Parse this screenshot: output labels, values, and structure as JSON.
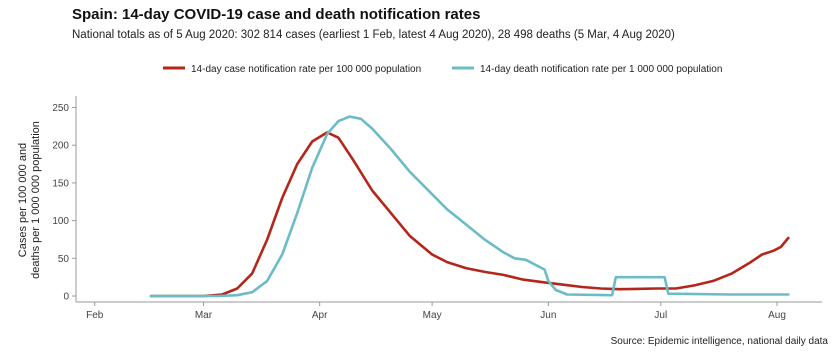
{
  "title": "Spain: 14-day COVID-19 case and death notification rates",
  "subtitle": "National totals as of 5 Aug 2020: 302 814 cases (earliest 1 Feb, latest 4 Aug 2020), 28 498 deaths (5 Mar, 4 Aug 2020)",
  "source": "Source: Epidemic intelligence, national daily data",
  "colors": {
    "cases": "#b5261a",
    "deaths": "#6cbcc8"
  },
  "chart_data": {
    "type": "line",
    "title": "Spain: 14-day COVID-19 case and death notification rates",
    "ylabel_line1": "Cases per 100 000 and",
    "ylabel_line2": "deaths per 1 000 000 population",
    "ylim": [
      0,
      260
    ],
    "yticks": [
      0,
      50,
      100,
      150,
      200,
      250
    ],
    "xlim": [
      "2020-01-27",
      "2020-08-13"
    ],
    "xticks": [
      {
        "label": "Feb",
        "date": "2020-02-01"
      },
      {
        "label": "Mar",
        "date": "2020-03-01"
      },
      {
        "label": "Apr",
        "date": "2020-04-01"
      },
      {
        "label": "May",
        "date": "2020-05-01"
      },
      {
        "label": "Jun",
        "date": "2020-06-01"
      },
      {
        "label": "Jul",
        "date": "2020-07-01"
      },
      {
        "label": "Aug",
        "date": "2020-08-01"
      }
    ],
    "legend_position": "top",
    "grid": false,
    "series": [
      {
        "name": "14-day case notification rate per 100 000 population",
        "color": "#b5261a",
        "points": [
          [
            "2020-02-16",
            0
          ],
          [
            "2020-03-01",
            0
          ],
          [
            "2020-03-06",
            2
          ],
          [
            "2020-03-10",
            10
          ],
          [
            "2020-03-14",
            30
          ],
          [
            "2020-03-18",
            75
          ],
          [
            "2020-03-22",
            130
          ],
          [
            "2020-03-26",
            175
          ],
          [
            "2020-03-30",
            205
          ],
          [
            "2020-04-03",
            217
          ],
          [
            "2020-04-06",
            210
          ],
          [
            "2020-04-10",
            180
          ],
          [
            "2020-04-15",
            140
          ],
          [
            "2020-04-20",
            110
          ],
          [
            "2020-04-25",
            80
          ],
          [
            "2020-05-01",
            55
          ],
          [
            "2020-05-05",
            45
          ],
          [
            "2020-05-10",
            37
          ],
          [
            "2020-05-15",
            32
          ],
          [
            "2020-05-20",
            28
          ],
          [
            "2020-05-25",
            22
          ],
          [
            "2020-05-31",
            18
          ],
          [
            "2020-06-05",
            15
          ],
          [
            "2020-06-10",
            12
          ],
          [
            "2020-06-15",
            10
          ],
          [
            "2020-06-20",
            9
          ],
          [
            "2020-06-30",
            10
          ],
          [
            "2020-07-05",
            10
          ],
          [
            "2020-07-10",
            14
          ],
          [
            "2020-07-15",
            20
          ],
          [
            "2020-07-20",
            30
          ],
          [
            "2020-07-25",
            45
          ],
          [
            "2020-07-28",
            55
          ],
          [
            "2020-07-31",
            60
          ],
          [
            "2020-08-02",
            65
          ],
          [
            "2020-08-04",
            77
          ]
        ]
      },
      {
        "name": "14-day death notification rate per 1 000 000 population",
        "color": "#6cbcc8",
        "points": [
          [
            "2020-02-16",
            0
          ],
          [
            "2020-03-05",
            0
          ],
          [
            "2020-03-10",
            1
          ],
          [
            "2020-03-14",
            5
          ],
          [
            "2020-03-18",
            20
          ],
          [
            "2020-03-22",
            55
          ],
          [
            "2020-03-26",
            110
          ],
          [
            "2020-03-30",
            170
          ],
          [
            "2020-04-03",
            215
          ],
          [
            "2020-04-06",
            232
          ],
          [
            "2020-04-09",
            238
          ],
          [
            "2020-04-12",
            235
          ],
          [
            "2020-04-15",
            222
          ],
          [
            "2020-04-20",
            195
          ],
          [
            "2020-04-25",
            165
          ],
          [
            "2020-05-01",
            135
          ],
          [
            "2020-05-05",
            115
          ],
          [
            "2020-05-10",
            95
          ],
          [
            "2020-05-15",
            75
          ],
          [
            "2020-05-20",
            58
          ],
          [
            "2020-05-23",
            50
          ],
          [
            "2020-05-26",
            48
          ],
          [
            "2020-05-31",
            35
          ],
          [
            "2020-06-01",
            20
          ],
          [
            "2020-06-03",
            8
          ],
          [
            "2020-06-06",
            2
          ],
          [
            "2020-06-18",
            1
          ],
          [
            "2020-06-19",
            25
          ],
          [
            "2020-07-02",
            25
          ],
          [
            "2020-07-03",
            3
          ],
          [
            "2020-07-20",
            2
          ],
          [
            "2020-08-04",
            2
          ]
        ]
      }
    ]
  }
}
